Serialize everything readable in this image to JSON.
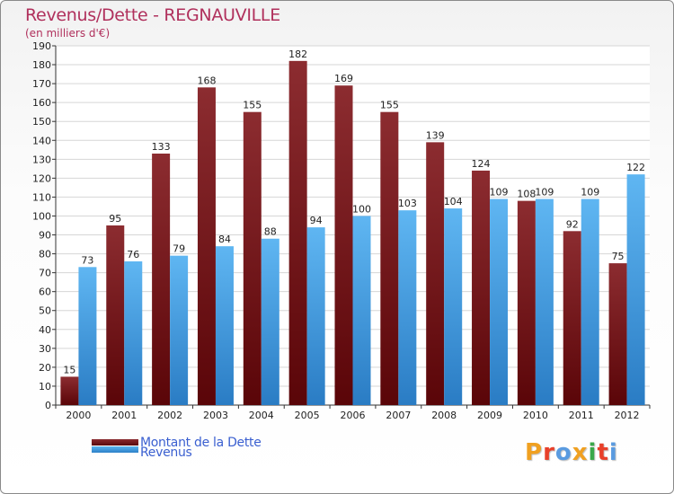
{
  "title": "Revenus/Dette - REGNAUVILLE",
  "subtitle": "(en milliers d'€)",
  "chart_data": {
    "type": "bar",
    "title": "Revenus/Dette - REGNAUVILLE",
    "ylabel": "(en milliers d'€)",
    "categories": [
      "2000",
      "2001",
      "2002",
      "2003",
      "2004",
      "2005",
      "2006",
      "2007",
      "2008",
      "2009",
      "2010",
      "2011",
      "2012"
    ],
    "series": [
      {
        "name": "Montant de la Dette",
        "color": "#7a1a1e",
        "values": [
          15,
          95,
          133,
          168,
          155,
          182,
          169,
          155,
          139,
          124,
          108,
          92,
          75
        ]
      },
      {
        "name": "Revenus",
        "color": "#4aa3e6",
        "values": [
          73,
          76,
          79,
          84,
          88,
          94,
          100,
          103,
          104,
          109,
          109,
          109,
          122
        ]
      }
    ],
    "ylim": [
      0,
      190
    ],
    "yticks": [
      0,
      10,
      20,
      30,
      40,
      50,
      60,
      70,
      80,
      90,
      100,
      110,
      120,
      130,
      140,
      150,
      160,
      170,
      180,
      190
    ],
    "grid": true,
    "legend": "bottom-left"
  },
  "logo": {
    "text": "Proxiti",
    "colors": [
      "#f0a020",
      "#e8402a",
      "#5a9be0",
      "#f0a020",
      "#3aa84a",
      "#e8402a",
      "#5a9be0"
    ]
  }
}
